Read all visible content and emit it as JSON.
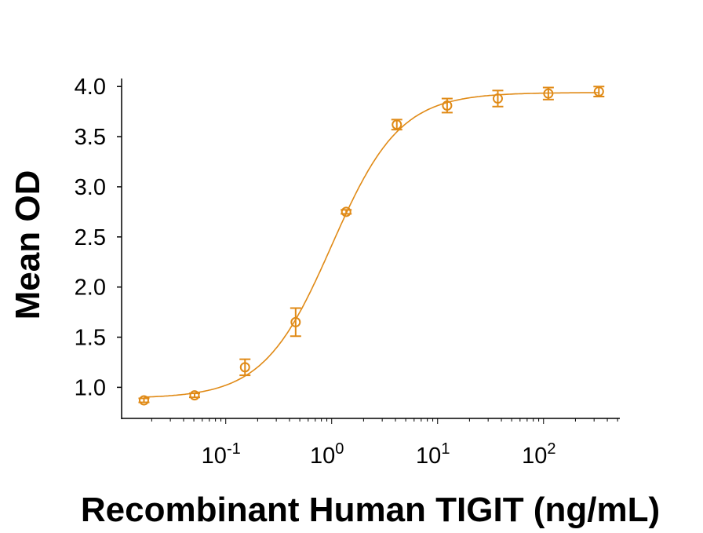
{
  "chart_data": {
    "type": "scatter",
    "title": "",
    "xlabel": "Recombinant Human TIGIT (ng/mL)",
    "ylabel": "Mean OD",
    "x_scale": "log",
    "xlim": [
      0.0104,
      525
    ],
    "ylim": [
      0.69,
      4.08
    ],
    "x_ticks": [
      {
        "value": 0.1,
        "base": "10",
        "exp": "-1"
      },
      {
        "value": 1,
        "base": "10",
        "exp": "0"
      },
      {
        "value": 10,
        "base": "10",
        "exp": "1"
      },
      {
        "value": 100,
        "base": "10",
        "exp": "2"
      }
    ],
    "y_ticks": [
      "1.0",
      "1.5",
      "2.0",
      "2.5",
      "3.0",
      "3.5",
      "4.0"
    ],
    "grid": false,
    "legend": "none",
    "color": "#E08A16",
    "series": [
      {
        "x": [
          0.0169,
          0.0508,
          0.152,
          0.457,
          1.37,
          4.12,
          12.3,
          37.0,
          111,
          333
        ],
        "y": [
          0.87,
          0.92,
          1.2,
          1.65,
          2.75,
          3.62,
          3.81,
          3.88,
          3.93,
          3.95
        ],
        "error": [
          0.02,
          0.02,
          0.08,
          0.14,
          0.02,
          0.05,
          0.07,
          0.08,
          0.06,
          0.05
        ]
      }
    ],
    "fit": {
      "model": "4PL",
      "bottom": 0.89,
      "top": 3.94,
      "ec50": 1.0,
      "hill": 1.35
    }
  }
}
